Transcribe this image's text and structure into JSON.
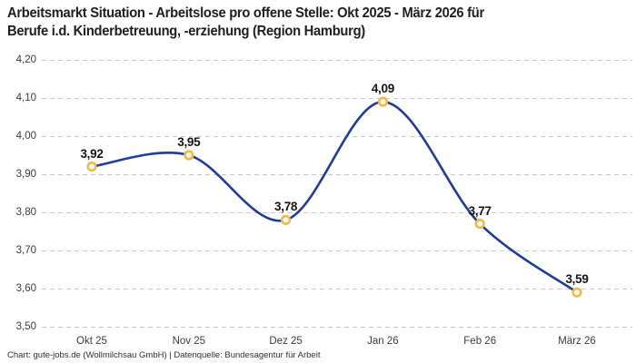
{
  "header": {
    "title_lines": [
      "Arbeitsmarkt Situation - Arbeitslose pro offene Stelle: Okt 2025 - März 2026 für",
      "Berufe i.d. Kinderbetreuung, -erziehung (Region Hamburg)"
    ]
  },
  "footer": {
    "text": "Chart: gute-jobs.de (Wollmilchsau GmbH) | Datenquelle: Bundesagentur für Arbeit"
  },
  "chart_data": {
    "type": "line",
    "title": "Arbeitsmarkt Situation - Arbeitslose pro offene Stelle: Okt 2025 - März 2026 für Berufe i.d. Kinderbetreuung, -erziehung (Region Hamburg)",
    "categories": [
      "Okt 25",
      "Nov 25",
      "Dez 25",
      "Jan 26",
      "Feb 26",
      "März 26"
    ],
    "values": [
      3.92,
      3.95,
      3.78,
      4.09,
      3.77,
      3.59
    ],
    "value_labels": [
      "3,92",
      "3,95",
      "3,78",
      "4,09",
      "3,77",
      "3,59"
    ],
    "y_tick_labels": [
      "4,20",
      "4,10",
      "4,00",
      "3,90",
      "3,80",
      "3,70",
      "3,60",
      "3,50"
    ],
    "ylim": [
      3.5,
      4.2
    ],
    "xlabel": "",
    "ylabel": "",
    "legend": "none",
    "grid": "horizontal-dashed",
    "colors": {
      "line": "#1e3c9b",
      "marker_stroke": "#f2ba40",
      "marker_fill": "#ffffff",
      "gridline": "#c9c9c9",
      "label_text": "#141414",
      "tick_text": "#3c3c3c"
    }
  }
}
